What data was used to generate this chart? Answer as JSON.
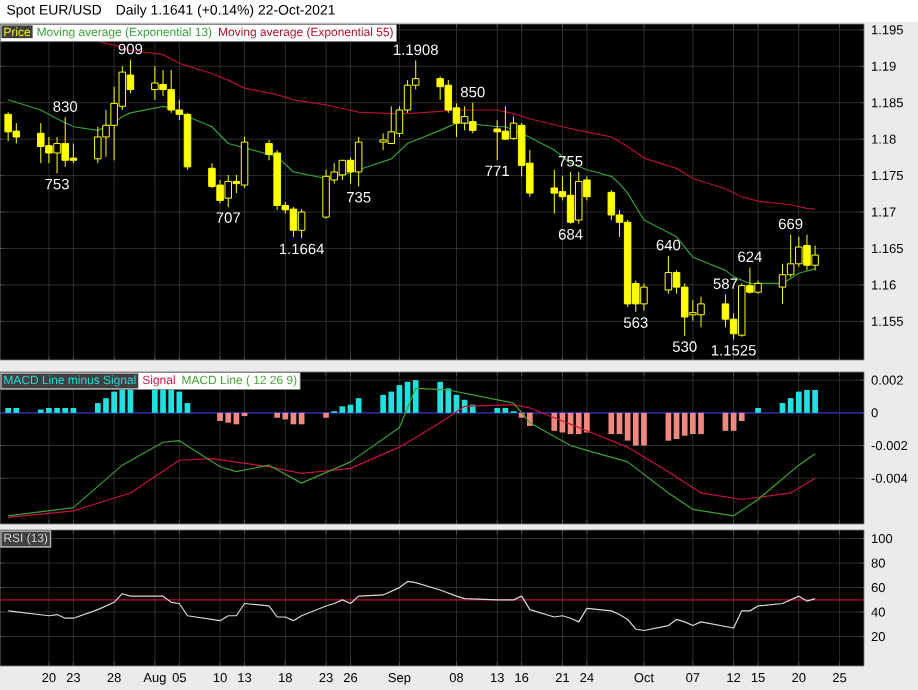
{
  "chart_data": [
    {
      "type": "candlestick",
      "title": "Spot EUR/USD",
      "subtitle": "Daily   1.1641 (+0.14%)   22-Oct-2021",
      "x": [
        "2021-07-15",
        "2021-07-16",
        "2021-07-19",
        "2021-07-20",
        "2021-07-21",
        "2021-07-22",
        "2021-07-23",
        "2021-07-26",
        "2021-07-27",
        "2021-07-28",
        "2021-07-29",
        "2021-07-30",
        "2021-08-02",
        "2021-08-03",
        "2021-08-04",
        "2021-08-05",
        "2021-08-06",
        "2021-08-09",
        "2021-08-10",
        "2021-08-11",
        "2021-08-12",
        "2021-08-13",
        "2021-08-16",
        "2021-08-17",
        "2021-08-18",
        "2021-08-19",
        "2021-08-20",
        "2021-08-23",
        "2021-08-24",
        "2021-08-25",
        "2021-08-26",
        "2021-08-27",
        "2021-08-30",
        "2021-08-31",
        "2021-09-01",
        "2021-09-02",
        "2021-09-03",
        "2021-09-06",
        "2021-09-07",
        "2021-09-08",
        "2021-09-09",
        "2021-09-10",
        "2021-09-13",
        "2021-09-14",
        "2021-09-15",
        "2021-09-16",
        "2021-09-17",
        "2021-09-20",
        "2021-09-21",
        "2021-09-22",
        "2021-09-23",
        "2021-09-24",
        "2021-09-27",
        "2021-09-28",
        "2021-09-29",
        "2021-09-30",
        "2021-10-01",
        "2021-10-04",
        "2021-10-05",
        "2021-10-06",
        "2021-10-07",
        "2021-10-08",
        "2021-10-11",
        "2021-10-12",
        "2021-10-13",
        "2021-10-14",
        "2021-10-15",
        "2021-10-18",
        "2021-10-19",
        "2021-10-20",
        "2021-10-21",
        "2021-10-22"
      ],
      "series": [
        {
          "name": "Price",
          "type": "candlestick",
          "color": "#ffff00",
          "ohlc": [
            [
              1.1834,
              1.1837,
              1.1797,
              1.181
            ],
            [
              1.1811,
              1.1822,
              1.1794,
              1.1803
            ],
            [
              1.1808,
              1.1822,
              1.1767,
              1.179
            ],
            [
              1.1791,
              1.1803,
              1.1767,
              1.1781
            ],
            [
              1.1781,
              1.1803,
              1.1753,
              1.1794
            ],
            [
              1.1794,
              1.183,
              1.1762,
              1.1771
            ],
            [
              1.1774,
              1.1794,
              1.1767,
              1.1771
            ],
            [
              1.1773,
              1.1817,
              1.1767,
              1.1803
            ],
            [
              1.1803,
              1.184,
              1.1776,
              1.1819
            ],
            [
              1.1819,
              1.1872,
              1.1771,
              1.1849
            ],
            [
              1.1845,
              1.19,
              1.184,
              1.1892
            ],
            [
              1.1888,
              1.1909,
              1.1863,
              1.1868
            ],
            [
              1.1868,
              1.19,
              1.1854,
              1.1877
            ],
            [
              1.1875,
              1.1895,
              1.1859,
              1.1868
            ],
            [
              1.1868,
              1.1895,
              1.1836,
              1.184
            ],
            [
              1.184,
              1.1854,
              1.1826,
              1.1834
            ],
            [
              1.1834,
              1.1836,
              1.1758,
              1.1762
            ],
            [
              1.176,
              1.1767,
              1.1733,
              1.1735
            ],
            [
              1.1737,
              1.1744,
              1.1712,
              1.1716
            ],
            [
              1.1719,
              1.1751,
              1.1707,
              1.1742
            ],
            [
              1.1742,
              1.1751,
              1.1726,
              1.1739
            ],
            [
              1.1737,
              1.1803,
              1.1733,
              1.1796
            ],
            [
              1.1794,
              1.1799,
              1.1771,
              1.1779
            ],
            [
              1.1781,
              1.1785,
              1.1703,
              1.1709
            ],
            [
              1.1709,
              1.1714,
              1.1698,
              1.1703
            ],
            [
              1.1704,
              1.1707,
              1.1666,
              1.1675
            ],
            [
              1.1675,
              1.1704,
              1.1664,
              1.17
            ],
            [
              1.1693,
              1.1758,
              1.1691,
              1.1749
            ],
            [
              1.1744,
              1.1767,
              1.1739,
              1.1755
            ],
            [
              1.1751,
              1.1771,
              1.1744,
              1.1771
            ],
            [
              1.1771,
              1.1775,
              1.1739,
              1.1755
            ],
            [
              1.1755,
              1.1803,
              1.1735,
              1.1796
            ],
            [
              1.1796,
              1.1808,
              1.1785,
              1.1799
            ],
            [
              1.1794,
              1.1845,
              1.1794,
              1.181
            ],
            [
              1.1808,
              1.1845,
              1.1803,
              1.184
            ],
            [
              1.184,
              1.1881,
              1.1836,
              1.1874
            ],
            [
              1.1874,
              1.1908,
              1.1868,
              1.1883
            ],
            [
              1.1883,
              1.1886,
              1.1854,
              1.1872
            ],
            [
              1.1874,
              1.1881,
              1.1836,
              1.184
            ],
            [
              1.1843,
              1.1849,
              1.1803,
              1.1822
            ],
            [
              1.1822,
              1.1845,
              1.1812,
              1.1831
            ],
            [
              1.1824,
              1.185,
              1.1808,
              1.1812
            ],
            [
              1.1814,
              1.1826,
              1.1771,
              1.181
            ],
            [
              1.1811,
              1.1845,
              1.1799,
              1.18
            ],
            [
              1.1801,
              1.1831,
              1.1799,
              1.1822
            ],
            [
              1.1819,
              1.1822,
              1.1749,
              1.1764
            ],
            [
              1.1767,
              1.1785,
              1.1721,
              1.1726
            ],
            [
              1.1733,
              1.1758,
              1.1698,
              1.1726
            ],
            [
              1.1728,
              1.1749,
              1.1716,
              1.1721
            ],
            [
              1.1723,
              1.1755,
              1.1684,
              1.1686
            ],
            [
              1.1689,
              1.1755,
              1.1684,
              1.1742
            ],
            [
              1.1744,
              1.1749,
              1.1716,
              1.1721
            ],
            [
              1.1727,
              1.173,
              1.1689,
              1.1696
            ],
            [
              1.1696,
              1.1703,
              1.1666,
              1.1686
            ],
            [
              1.1686,
              1.1689,
              1.157,
              1.1574
            ],
            [
              1.1602,
              1.1606,
              1.1563,
              1.1574
            ],
            [
              1.1574,
              1.1602,
              1.1565,
              1.1597
            ],
            [
              1.1593,
              1.164,
              1.1588,
              1.1617
            ],
            [
              1.1617,
              1.162,
              1.1588,
              1.1597
            ],
            [
              1.1597,
              1.1602,
              1.153,
              1.1556
            ],
            [
              1.1559,
              1.1579,
              1.1551,
              1.1562
            ],
            [
              1.1559,
              1.1584,
              1.1542,
              1.1574
            ],
            [
              1.1574,
              1.1587,
              1.1542,
              1.1553
            ],
            [
              1.1553,
              1.1561,
              1.1525,
              1.1533
            ],
            [
              1.1531,
              1.1602,
              1.1529,
              1.1599
            ],
            [
              1.1599,
              1.1624,
              1.1588,
              1.159
            ],
            [
              1.159,
              1.1606,
              1.1588,
              1.1602
            ],
            [
              1.1597,
              1.1629,
              1.1574,
              1.1614
            ],
            [
              1.1614,
              1.1669,
              1.1611,
              1.1629
            ],
            [
              1.1629,
              1.1666,
              1.1625,
              1.1652
            ],
            [
              1.1654,
              1.1669,
              1.162,
              1.1627
            ],
            [
              1.1627,
              1.1654,
              1.162,
              1.1641
            ]
          ]
        },
        {
          "name": "Moving average (Exponential 13)",
          "type": "line",
          "color": "#33a033",
          "x": [
            "2021-07-15",
            "2021-07-19",
            "2021-07-21",
            "2021-07-23",
            "2021-07-26",
            "2021-07-28",
            "2021-07-29",
            "2021-07-30",
            "2021-08-03",
            "2021-08-04",
            "2021-08-06",
            "2021-08-09",
            "2021-08-11",
            "2021-08-13",
            "2021-08-17",
            "2021-08-19",
            "2021-08-23",
            "2021-08-25",
            "2021-08-27",
            "2021-08-31",
            "2021-09-02",
            "2021-09-06",
            "2021-09-08",
            "2021-09-09",
            "2021-09-13",
            "2021-09-14",
            "2021-09-16",
            "2021-09-20",
            "2021-09-22",
            "2021-09-24",
            "2021-09-27",
            "2021-09-28",
            "2021-09-29",
            "2021-10-01",
            "2021-10-05",
            "2021-10-07",
            "2021-10-11",
            "2021-10-12",
            "2021-10-14",
            "2021-10-18",
            "2021-10-20",
            "2021-10-22"
          ],
          "values": [
            1.1854,
            1.184,
            1.1828,
            1.1817,
            1.1812,
            1.1822,
            1.1831,
            1.1836,
            1.1845,
            1.1843,
            1.1831,
            1.1817,
            1.1794,
            1.1788,
            1.1776,
            1.1755,
            1.1746,
            1.1751,
            1.1758,
            1.1773,
            1.1794,
            1.1812,
            1.1822,
            1.1822,
            1.1817,
            1.1817,
            1.1808,
            1.1785,
            1.1767,
            1.1758,
            1.1749,
            1.1739,
            1.1726,
            1.1689,
            1.1666,
            1.1638,
            1.162,
            1.1611,
            1.1602,
            1.1602,
            1.1616,
            1.1622
          ]
        },
        {
          "name": "Moving average (Exponential 55)",
          "type": "line",
          "color": "#b01030",
          "x": [
            "2021-07-26",
            "2021-07-28",
            "2021-07-30",
            "2021-08-03",
            "2021-08-05",
            "2021-08-09",
            "2021-08-11",
            "2021-08-13",
            "2021-08-17",
            "2021-08-19",
            "2021-08-23",
            "2021-08-25",
            "2021-08-27",
            "2021-08-31",
            "2021-09-02",
            "2021-09-06",
            "2021-09-08",
            "2021-09-13",
            "2021-09-15",
            "2021-09-17",
            "2021-09-21",
            "2021-09-23",
            "2021-09-27",
            "2021-09-29",
            "2021-10-01",
            "2021-10-05",
            "2021-10-07",
            "2021-10-11",
            "2021-10-13",
            "2021-10-15",
            "2021-10-19",
            "2021-10-21",
            "2021-10-22"
          ],
          "values": [
            1.1934,
            1.1929,
            1.1922,
            1.1916,
            1.1904,
            1.189,
            1.1881,
            1.187,
            1.1861,
            1.1854,
            1.1847,
            1.1842,
            1.1837,
            1.1835,
            1.1835,
            1.1838,
            1.184,
            1.184,
            1.1835,
            1.1828,
            1.1817,
            1.1812,
            1.1803,
            1.179,
            1.1774,
            1.176,
            1.1746,
            1.1732,
            1.1721,
            1.1715,
            1.171,
            1.1705,
            1.1704
          ]
        }
      ],
      "annotations": [
        {
          "text": "830",
          "x": "2021-07-22",
          "y": 1.183
        },
        {
          "text": "753",
          "x": "2021-07-21",
          "y": 1.1753
        },
        {
          "text": "909",
          "x": "2021-07-30",
          "y": 1.1909
        },
        {
          "text": "707",
          "x": "2021-08-11",
          "y": 1.1707
        },
        {
          "text": "1.1664",
          "x": "2021-08-20",
          "y": 1.1664
        },
        {
          "text": "735",
          "x": "2021-08-27",
          "y": 1.1735
        },
        {
          "text": "1.1908",
          "x": "2021-09-03",
          "y": 1.1908
        },
        {
          "text": "850",
          "x": "2021-09-10",
          "y": 1.185
        },
        {
          "text": "771",
          "x": "2021-09-13",
          "y": 1.1771
        },
        {
          "text": "755",
          "x": "2021-09-22",
          "y": 1.1755
        },
        {
          "text": "684",
          "x": "2021-09-22",
          "y": 1.1684
        },
        {
          "text": "563",
          "x": "2021-09-30",
          "y": 1.1563
        },
        {
          "text": "640",
          "x": "2021-10-04",
          "y": 1.164
        },
        {
          "text": "530",
          "x": "2021-10-06",
          "y": 1.153
        },
        {
          "text": "587",
          "x": "2021-10-11",
          "y": 1.1587
        },
        {
          "text": "1.1525",
          "x": "2021-10-12",
          "y": 1.1525
        },
        {
          "text": "624",
          "x": "2021-10-14",
          "y": 1.1624
        },
        {
          "text": "669",
          "x": "2021-10-19",
          "y": 1.1669
        }
      ],
      "xlim": [
        "2021-07-14",
        "2021-10-28"
      ],
      "xticks": [
        {
          "value": "2021-07-20",
          "label": null
        },
        {
          "value": "2021-07-23",
          "label": null
        },
        {
          "value": "2021-07-28",
          "label": null
        },
        {
          "value": "2021-08-02",
          "label": null
        },
        {
          "value": "2021-08-05",
          "label": null
        },
        {
          "value": "2021-08-10",
          "label": null
        },
        {
          "value": "2021-08-13",
          "label": null
        },
        {
          "value": "2021-08-18",
          "label": null
        },
        {
          "value": "2021-08-23",
          "label": null
        },
        {
          "value": "2021-08-26",
          "label": null
        },
        {
          "value": "2021-09-01",
          "label": null
        },
        {
          "value": "2021-09-08",
          "label": null
        },
        {
          "value": "2021-09-13",
          "label": null
        },
        {
          "value": "2021-09-16",
          "label": null
        },
        {
          "value": "2021-09-21",
          "label": null
        },
        {
          "value": "2021-09-24",
          "label": null
        },
        {
          "value": "2021-10-01",
          "label": null
        },
        {
          "value": "2021-10-07",
          "label": null
        },
        {
          "value": "2021-10-12",
          "label": null
        },
        {
          "value": "2021-10-15",
          "label": null
        },
        {
          "value": "2021-10-20",
          "label": null
        },
        {
          "value": "2021-10-25",
          "label": null
        }
      ],
      "ylim": [
        1.1497,
        1.1958
      ],
      "yticks": [
        1.155,
        1.16,
        1.165,
        1.17,
        1.175,
        1.18,
        1.185,
        1.19,
        1.195
      ],
      "tick_labels": "y",
      "grid": true,
      "legend": "top left"
    },
    {
      "type": "bar",
      "x": [
        "2021-07-15",
        "2021-07-16",
        "2021-07-19",
        "2021-07-20",
        "2021-07-21",
        "2021-07-22",
        "2021-07-23",
        "2021-07-26",
        "2021-07-27",
        "2021-07-28",
        "2021-07-29",
        "2021-07-30",
        "2021-08-02",
        "2021-08-03",
        "2021-08-04",
        "2021-08-05",
        "2021-08-06",
        "2021-08-09",
        "2021-08-10",
        "2021-08-11",
        "2021-08-12",
        "2021-08-13",
        "2021-08-16",
        "2021-08-17",
        "2021-08-18",
        "2021-08-19",
        "2021-08-20",
        "2021-08-23",
        "2021-08-24",
        "2021-08-25",
        "2021-08-26",
        "2021-08-27",
        "2021-08-30",
        "2021-08-31",
        "2021-09-01",
        "2021-09-02",
        "2021-09-03",
        "2021-09-06",
        "2021-09-07",
        "2021-09-08",
        "2021-09-09",
        "2021-09-10",
        "2021-09-13",
        "2021-09-14",
        "2021-09-15",
        "2021-09-16",
        "2021-09-17",
        "2021-09-20",
        "2021-09-21",
        "2021-09-22",
        "2021-09-23",
        "2021-09-24",
        "2021-09-27",
        "2021-09-28",
        "2021-09-29",
        "2021-09-30",
        "2021-10-01",
        "2021-10-04",
        "2021-10-05",
        "2021-10-06",
        "2021-10-07",
        "2021-10-08",
        "2021-10-11",
        "2021-10-12",
        "2021-10-13",
        "2021-10-14",
        "2021-10-15",
        "2021-10-18",
        "2021-10-19",
        "2021-10-20",
        "2021-10-21",
        "2021-10-22"
      ],
      "series": [
        {
          "name": "MACD Line minus Signal",
          "type": "bar",
          "color": "#20e0e0",
          "values": [
            0.0003,
            0.0003,
            0.0002,
            0.0003,
            0.0003,
            0.0003,
            0.0003,
            0.0006,
            0.0009,
            0.0013,
            0.0015,
            0.0016,
            0.0016,
            0.0016,
            0.0016,
            0.0013,
            0.0006,
            0.0,
            -0.0005,
            -0.0006,
            -0.0007,
            -0.0002,
            0.0,
            -0.0003,
            -0.0004,
            -0.0007,
            -0.0007,
            -0.0003,
            0.0001,
            0.0004,
            0.0005,
            0.0009,
            0.0011,
            0.0013,
            0.0017,
            0.0019,
            0.002,
            0.0019,
            0.0015,
            0.0011,
            0.0008,
            0.0005,
            0.0003,
            0.0003,
            0.0001,
            -0.0003,
            -0.0008,
            -0.0011,
            -0.0012,
            -0.0013,
            -0.0013,
            -0.0012,
            -0.0013,
            -0.0013,
            -0.0017,
            -0.002,
            -0.002,
            -0.0017,
            -0.0016,
            -0.0014,
            -0.0013,
            -0.0013,
            -0.0011,
            -0.0011,
            -0.0005,
            0.0,
            0.0003,
            0.0006,
            0.0009,
            0.0013,
            0.0014,
            0.0014
          ],
          "colors": [
            "#20e0e0",
            "#20e0e0",
            "#20e0e0",
            "#20e0e0",
            "#20e0e0",
            "#20e0e0",
            "#20e0e0",
            "#20e0e0",
            "#20e0e0",
            "#20e0e0",
            "#20e0e0",
            "#20e0e0",
            "#20e0e0",
            "#20e0e0",
            "#20e0e0",
            "#20e0e0",
            "#20e0e0",
            "#20e0e0",
            "#f08a80",
            "#f08a80",
            "#f08a80",
            "#f08a80",
            "#20e0e0",
            "#f08a80",
            "#f08a80",
            "#f08a80",
            "#f08a80",
            "#f08a80",
            "#20e0e0",
            "#20e0e0",
            "#20e0e0",
            "#20e0e0",
            "#20e0e0",
            "#20e0e0",
            "#20e0e0",
            "#20e0e0",
            "#20e0e0",
            "#20e0e0",
            "#20e0e0",
            "#20e0e0",
            "#20e0e0",
            "#20e0e0",
            "#20e0e0",
            "#20e0e0",
            "#20e0e0",
            "#f08a80",
            "#f08a80",
            "#f08a80",
            "#f08a80",
            "#f08a80",
            "#f08a80",
            "#f08a80",
            "#f08a80",
            "#f08a80",
            "#f08a80",
            "#f08a80",
            "#f08a80",
            "#f08a80",
            "#f08a80",
            "#f08a80",
            "#f08a80",
            "#f08a80",
            "#f08a80",
            "#f08a80",
            "#f08a80",
            "#20e0e0",
            "#20e0e0",
            "#20e0e0",
            "#20e0e0",
            "#20e0e0",
            "#20e0e0",
            "#20e0e0"
          ]
        },
        {
          "name": "Signal",
          "type": "line",
          "color": "#c81040",
          "x": [
            "2021-07-15",
            "2021-07-23",
            "2021-07-30",
            "2021-08-05",
            "2021-08-09",
            "2021-08-16",
            "2021-08-20",
            "2021-08-26",
            "2021-09-01",
            "2021-09-06",
            "2021-09-09",
            "2021-09-15",
            "2021-09-17",
            "2021-09-23",
            "2021-09-29",
            "2021-10-04",
            "2021-10-08",
            "2021-10-13",
            "2021-10-19",
            "2021-10-22"
          ],
          "values": [
            -0.0064,
            -0.006,
            -0.0049,
            -0.0029,
            -0.0028,
            -0.0033,
            -0.0037,
            -0.0034,
            -0.0021,
            -0.0006,
            0.0004,
            0.0005,
            0.0003,
            -0.0009,
            -0.0021,
            -0.0036,
            -0.0049,
            -0.0053,
            -0.0049,
            -0.004
          ]
        },
        {
          "name": "MACD Line ( 12 26 9)",
          "type": "line",
          "color": "#40a030",
          "x": [
            "2021-07-15",
            "2021-07-23",
            "2021-07-29",
            "2021-08-03",
            "2021-08-05",
            "2021-08-10",
            "2021-08-12",
            "2021-08-16",
            "2021-08-20",
            "2021-08-26",
            "2021-09-01",
            "2021-09-03",
            "2021-09-07",
            "2021-09-10",
            "2021-09-15",
            "2021-09-17",
            "2021-09-22",
            "2021-09-24",
            "2021-09-29",
            "2021-10-04",
            "2021-10-07",
            "2021-10-12",
            "2021-10-15",
            "2021-10-20",
            "2021-10-22"
          ],
          "values": [
            -0.0063,
            -0.0058,
            -0.0032,
            -0.0018,
            -0.0017,
            -0.0033,
            -0.0036,
            -0.0032,
            -0.0043,
            -0.003,
            -0.0009,
            0.0015,
            0.0014,
            0.0011,
            0.0006,
            -0.0006,
            -0.002,
            -0.0023,
            -0.003,
            -0.0049,
            -0.0059,
            -0.0063,
            -0.0053,
            -0.0032,
            -0.0025
          ]
        }
      ],
      "ref_lines": [
        {
          "axis": "y",
          "value": 0,
          "color": "#3030c0"
        }
      ],
      "xlim": [
        "2021-07-14",
        "2021-10-28"
      ],
      "xticks": [
        {
          "value": "2021-07-20",
          "label": null
        },
        {
          "value": "2021-07-23",
          "label": null
        },
        {
          "value": "2021-07-28",
          "label": null
        },
        {
          "value": "2021-08-02",
          "label": null
        },
        {
          "value": "2021-08-05",
          "label": null
        },
        {
          "value": "2021-08-10",
          "label": null
        },
        {
          "value": "2021-08-13",
          "label": null
        },
        {
          "value": "2021-08-18",
          "label": null
        },
        {
          "value": "2021-08-23",
          "label": null
        },
        {
          "value": "2021-08-26",
          "label": null
        },
        {
          "value": "2021-09-01",
          "label": null
        },
        {
          "value": "2021-09-08",
          "label": null
        },
        {
          "value": "2021-09-13",
          "label": null
        },
        {
          "value": "2021-09-16",
          "label": null
        },
        {
          "value": "2021-09-21",
          "label": null
        },
        {
          "value": "2021-09-24",
          "label": null
        },
        {
          "value": "2021-10-01",
          "label": null
        },
        {
          "value": "2021-10-07",
          "label": null
        },
        {
          "value": "2021-10-12",
          "label": null
        },
        {
          "value": "2021-10-15",
          "label": null
        },
        {
          "value": "2021-10-20",
          "label": null
        },
        {
          "value": "2021-10-25",
          "label": null
        }
      ],
      "ylim": [
        -0.0068,
        0.0025
      ],
      "yticks": [
        -0.004,
        -0.002,
        0,
        0.002
      ],
      "tick_labels": "y",
      "grid": true,
      "legend": "top left"
    },
    {
      "type": "line",
      "series": [
        {
          "name": "RSI (13)",
          "color": "#d8d8d8",
          "x": [
            "2021-07-15",
            "2021-07-20",
            "2021-07-21",
            "2021-07-22",
            "2021-07-23",
            "2021-07-26",
            "2021-07-28",
            "2021-07-29",
            "2021-07-30",
            "2021-08-03",
            "2021-08-04",
            "2021-08-05",
            "2021-08-06",
            "2021-08-10",
            "2021-08-11",
            "2021-08-12",
            "2021-08-13",
            "2021-08-16",
            "2021-08-17",
            "2021-08-18",
            "2021-08-19",
            "2021-08-20",
            "2021-08-23",
            "2021-08-24",
            "2021-08-25",
            "2021-08-26",
            "2021-08-27",
            "2021-08-30",
            "2021-09-01",
            "2021-09-02",
            "2021-09-03",
            "2021-09-06",
            "2021-09-08",
            "2021-09-09",
            "2021-09-13",
            "2021-09-15",
            "2021-09-16",
            "2021-09-17",
            "2021-09-20",
            "2021-09-21",
            "2021-09-22",
            "2021-09-23",
            "2021-09-24",
            "2021-09-27",
            "2021-09-28",
            "2021-09-29",
            "2021-09-30",
            "2021-10-01",
            "2021-10-04",
            "2021-10-05",
            "2021-10-06",
            "2021-10-07",
            "2021-10-08",
            "2021-10-12",
            "2021-10-13",
            "2021-10-14",
            "2021-10-15",
            "2021-10-18",
            "2021-10-20",
            "2021-10-21",
            "2021-10-22"
          ],
          "values": [
            41,
            37,
            38,
            35,
            35,
            42,
            48,
            55,
            53,
            53,
            48,
            47,
            37,
            33,
            37,
            37,
            47,
            45,
            36,
            36,
            33,
            37,
            45,
            47,
            50,
            47,
            53,
            54,
            60,
            65,
            64,
            58,
            53,
            51,
            50,
            50,
            53,
            42,
            36,
            37,
            35,
            32,
            43,
            41,
            38,
            34,
            26,
            25,
            29,
            34,
            32,
            29,
            32,
            27,
            41,
            41,
            45,
            47,
            53,
            49,
            51
          ]
        }
      ],
      "ref_lines": [
        {
          "axis": "y",
          "value": 50,
          "color": "#c01030"
        }
      ],
      "xlim": [
        "2021-07-14",
        "2021-10-28"
      ],
      "xticks": [
        {
          "value": "2021-07-20",
          "label": "20"
        },
        {
          "value": "2021-07-23",
          "label": "23"
        },
        {
          "value": "2021-07-28",
          "label": "28"
        },
        {
          "value": "2021-08-02",
          "label": "Aug"
        },
        {
          "value": "2021-08-05",
          "label": "05"
        },
        {
          "value": "2021-08-10",
          "label": "10"
        },
        {
          "value": "2021-08-13",
          "label": "13"
        },
        {
          "value": "2021-08-18",
          "label": "18"
        },
        {
          "value": "2021-08-23",
          "label": "23"
        },
        {
          "value": "2021-08-26",
          "label": "26"
        },
        {
          "value": "2021-09-01",
          "label": "Sep"
        },
        {
          "value": "2021-09-08",
          "label": "08"
        },
        {
          "value": "2021-09-13",
          "label": "13"
        },
        {
          "value": "2021-09-16",
          "label": "16"
        },
        {
          "value": "2021-09-21",
          "label": "21"
        },
        {
          "value": "2021-09-24",
          "label": "24"
        },
        {
          "value": "2021-10-01",
          "label": "Oct"
        },
        {
          "value": "2021-10-07",
          "label": "07"
        },
        {
          "value": "2021-10-12",
          "label": "12"
        },
        {
          "value": "2021-10-15",
          "label": "15"
        },
        {
          "value": "2021-10-20",
          "label": "20"
        },
        {
          "value": "2021-10-25",
          "label": "25"
        }
      ],
      "ylim": [
        -4,
        107
      ],
      "yticks": [
        20,
        40,
        60,
        80,
        100
      ],
      "grid": true,
      "legend": "top left"
    }
  ]
}
